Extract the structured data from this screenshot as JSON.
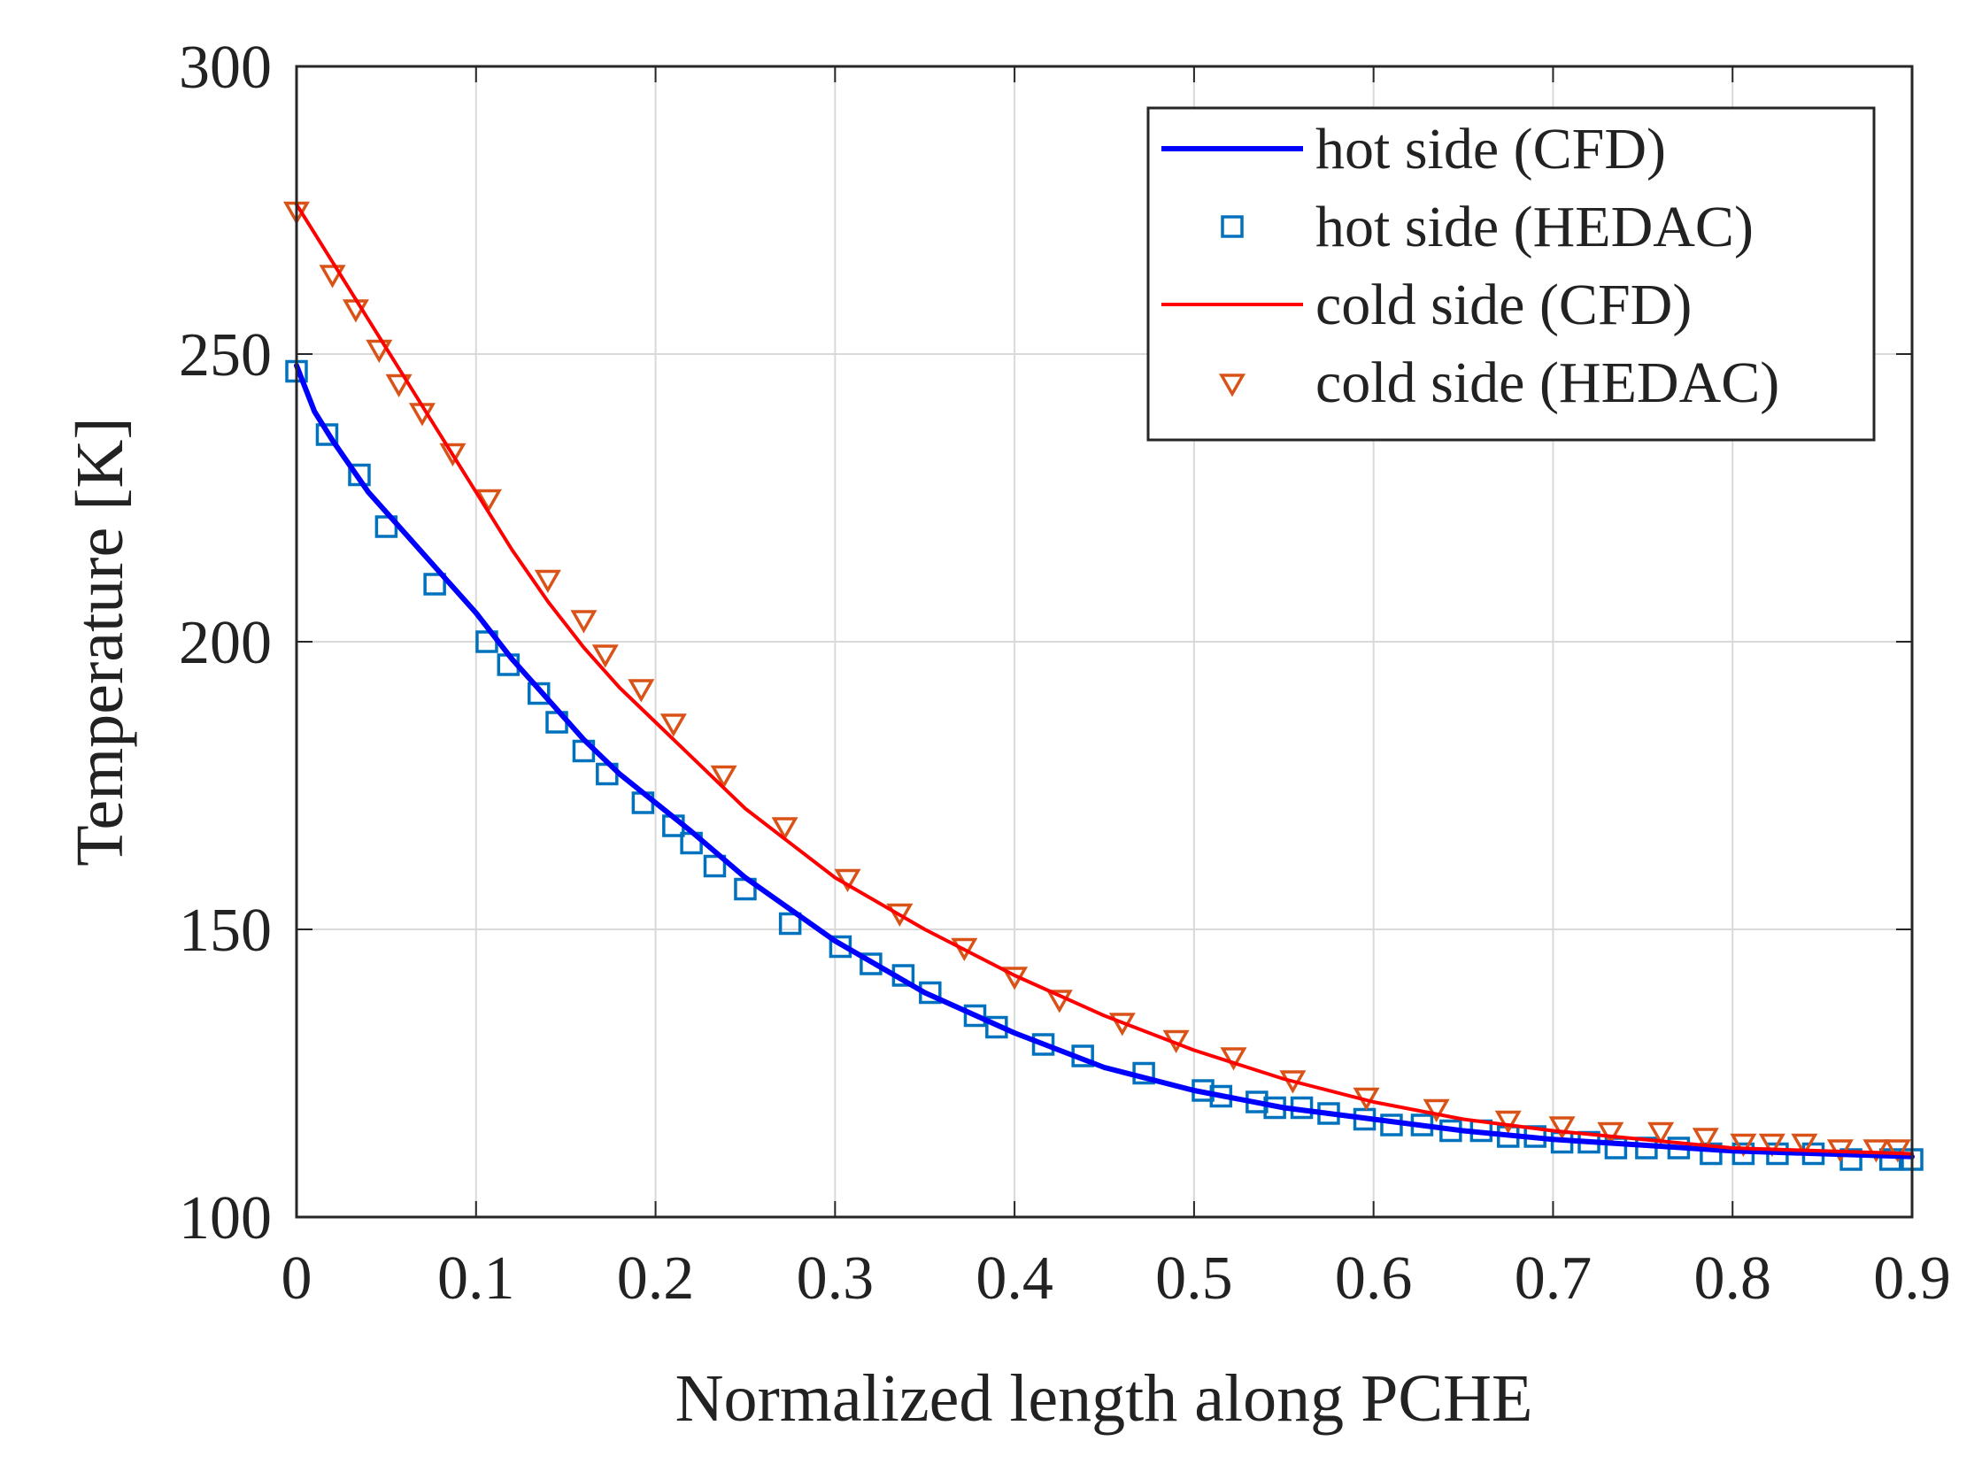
{
  "chart_data": {
    "type": "line",
    "title": "",
    "xlabel": "Normalized length along PCHE",
    "ylabel": "Temperature   [K]",
    "xlim": [
      0,
      0.9
    ],
    "ylim": [
      100,
      300
    ],
    "grid": true,
    "legend_position": "top-right",
    "xticks": [
      0,
      0.1,
      0.2,
      0.3,
      0.4,
      0.5,
      0.6,
      0.7,
      0.8,
      0.9
    ],
    "xtick_labels": [
      "0",
      "0.1",
      "0.2",
      "0.3",
      "0.4",
      "0.5",
      "0.6",
      "0.7",
      "0.8",
      "0.9"
    ],
    "yticks": [
      100,
      150,
      200,
      250,
      300
    ],
    "ytick_labels": [
      "100",
      "150",
      "200",
      "250",
      "300"
    ],
    "series": [
      {
        "name": "hot side (CFD)",
        "style": "line",
        "color": "#0000ff",
        "x": [
          0,
          0.01,
          0.02,
          0.04,
          0.06,
          0.08,
          0.1,
          0.12,
          0.14,
          0.16,
          0.18,
          0.2,
          0.22,
          0.25,
          0.3,
          0.35,
          0.4,
          0.45,
          0.5,
          0.55,
          0.6,
          0.65,
          0.7,
          0.75,
          0.8,
          0.85,
          0.9
        ],
        "y": [
          248,
          240,
          235,
          226,
          219,
          212,
          205,
          197,
          190,
          183,
          177,
          172,
          167,
          159,
          148,
          139,
          132,
          126,
          122,
          119,
          117,
          115,
          113.5,
          112.5,
          111.5,
          111,
          110.5
        ]
      },
      {
        "name": "hot side (HEDAC)",
        "style": "square",
        "color": "#0072bd",
        "x": [
          0,
          0.017,
          0.035,
          0.05,
          0.077,
          0.106,
          0.118,
          0.135,
          0.145,
          0.16,
          0.173,
          0.193,
          0.21,
          0.22,
          0.233,
          0.25,
          0.275,
          0.303,
          0.32,
          0.338,
          0.353,
          0.378,
          0.39,
          0.416,
          0.438,
          0.472,
          0.505,
          0.515,
          0.535,
          0.545,
          0.56,
          0.575,
          0.595,
          0.61,
          0.627,
          0.643,
          0.66,
          0.675,
          0.69,
          0.705,
          0.72,
          0.735,
          0.752,
          0.77,
          0.788,
          0.806,
          0.825,
          0.845,
          0.866,
          0.888,
          0.9
        ],
        "y": [
          247,
          236,
          229,
          220,
          210,
          200,
          196,
          191,
          186,
          181,
          177,
          172,
          168,
          165,
          161,
          157,
          151,
          147,
          144,
          142,
          139,
          135,
          133,
          130,
          128,
          125,
          122,
          121,
          120,
          119,
          119,
          118,
          117,
          116,
          116,
          115,
          115,
          114,
          114,
          113,
          113,
          112,
          112,
          112,
          111,
          111,
          111,
          111,
          110,
          110,
          110
        ]
      },
      {
        "name": "cold side (CFD)",
        "style": "line",
        "color": "#ff0000",
        "x": [
          0,
          0.02,
          0.04,
          0.06,
          0.08,
          0.1,
          0.12,
          0.14,
          0.16,
          0.18,
          0.2,
          0.25,
          0.3,
          0.35,
          0.4,
          0.45,
          0.5,
          0.55,
          0.6,
          0.65,
          0.7,
          0.75,
          0.8,
          0.85,
          0.9
        ],
        "y": [
          276,
          266,
          256,
          246,
          236,
          226,
          216,
          207,
          199,
          192,
          186,
          171,
          159,
          150,
          142,
          135,
          129,
          124,
          120,
          117,
          115,
          113.5,
          112,
          111.5,
          111
        ]
      },
      {
        "name": "cold side (HEDAC)",
        "style": "triangle-down",
        "color": "#d95319",
        "x": [
          0,
          0.02,
          0.033,
          0.046,
          0.057,
          0.07,
          0.087,
          0.107,
          0.14,
          0.16,
          0.172,
          0.192,
          0.21,
          0.238,
          0.272,
          0.307,
          0.336,
          0.372,
          0.4,
          0.425,
          0.46,
          0.49,
          0.522,
          0.555,
          0.596,
          0.635,
          0.675,
          0.705,
          0.732,
          0.76,
          0.785,
          0.806,
          0.822,
          0.84,
          0.86,
          0.88,
          0.892
        ],
        "y": [
          275,
          264,
          258,
          251,
          245,
          240,
          233,
          225,
          211,
          204,
          198,
          192,
          186,
          177,
          168,
          159,
          153,
          147,
          142,
          138,
          134,
          131,
          128,
          124,
          121,
          119,
          117,
          116,
          115,
          115,
          114,
          113,
          113,
          113,
          112,
          112,
          112
        ]
      }
    ]
  }
}
